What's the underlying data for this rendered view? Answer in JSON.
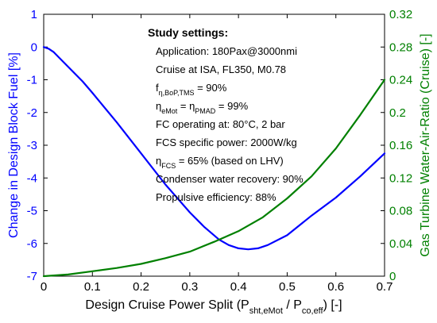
{
  "chart_data": {
    "type": "line",
    "title": "",
    "x_axis": {
      "label_parts": [
        "Design Cruise Power Split (P",
        "sht,eMot",
        " / P",
        "co,eff",
        ") [-]"
      ],
      "range": [
        0,
        0.7
      ],
      "ticks": [
        "0",
        "0.1",
        "0.2",
        "0.3",
        "0.4",
        "0.5",
        "0.6",
        "0.7"
      ],
      "tick_values": [
        0,
        0.1,
        0.2,
        0.3,
        0.4,
        0.5,
        0.6,
        0.7
      ]
    },
    "y_left": {
      "label": "Change in Design Block Fuel [%]",
      "range": [
        -7,
        1
      ],
      "ticks": [
        "1",
        "0",
        "-1",
        "-2",
        "-3",
        "-4",
        "-5",
        "-6",
        "-7"
      ],
      "tick_values": [
        1,
        0,
        -1,
        -2,
        -3,
        -4,
        -5,
        -6,
        -7
      ],
      "color": "#0000ff"
    },
    "y_right": {
      "label": "Gas Turbine Water-Air-Ratio (Cruise) [-]",
      "range": [
        0,
        0.32
      ],
      "ticks": [
        "0.32",
        "0.28",
        "0.24",
        "0.2",
        "0.16",
        "0.12",
        "0.08",
        "0.04",
        "0"
      ],
      "tick_values": [
        0.32,
        0.28,
        0.24,
        0.2,
        0.16,
        0.12,
        0.08,
        0.04,
        0
      ],
      "color": "#008000"
    },
    "series": [
      {
        "axis": "left",
        "color": "#0000ff",
        "x": [
          0,
          0.01,
          0.02,
          0.03,
          0.05,
          0.08,
          0.1,
          0.15,
          0.2,
          0.25,
          0.3,
          0.33,
          0.36,
          0.38,
          0.4,
          0.42,
          0.44,
          0.46,
          0.5,
          0.55,
          0.6,
          0.65,
          0.7
        ],
        "y": [
          0,
          -0.05,
          -0.15,
          -0.3,
          -0.6,
          -1.05,
          -1.4,
          -2.3,
          -3.25,
          -4.2,
          -5.05,
          -5.5,
          -5.88,
          -6.05,
          -6.15,
          -6.18,
          -6.15,
          -6.05,
          -5.75,
          -5.15,
          -4.6,
          -3.95,
          -3.25
        ]
      },
      {
        "axis": "right",
        "color": "#008000",
        "x": [
          0,
          0.05,
          0.1,
          0.15,
          0.2,
          0.25,
          0.3,
          0.35,
          0.4,
          0.45,
          0.5,
          0.55,
          0.6,
          0.65,
          0.7
        ],
        "y": [
          0,
          0.002,
          0.006,
          0.01,
          0.015,
          0.022,
          0.03,
          0.042,
          0.055,
          0.072,
          0.095,
          0.122,
          0.156,
          0.197,
          0.24
        ]
      }
    ],
    "annotation": {
      "title": "Study settings:",
      "lines": [
        [
          {
            "t": "Application: 180Pax@3000nmi"
          }
        ],
        [
          {
            "t": "Cruise at ISA, FL350, M0.78"
          }
        ],
        [
          {
            "t": "f"
          },
          {
            "t": "η,BoP,TMS",
            "sub": true
          },
          {
            "t": " = 90%"
          }
        ],
        [
          {
            "t": "η"
          },
          {
            "t": "eMot",
            "sub": true
          },
          {
            "t": " = η"
          },
          {
            "t": "PMAD",
            "sub": true
          },
          {
            "t": " =  99%"
          }
        ],
        [
          {
            "t": "FC operating at: 80°C, 2 bar"
          }
        ],
        [
          {
            "t": "FCS specific power: 2000W/kg"
          }
        ],
        [
          {
            "t": "η"
          },
          {
            "t": "FCS",
            "sub": true
          },
          {
            "t": " =  65% (based on LHV)"
          }
        ],
        [
          {
            "t": "Condenser water recovery: 90%"
          }
        ],
        [
          {
            "t": "Propulsive efficiency: 88%"
          }
        ]
      ]
    }
  }
}
